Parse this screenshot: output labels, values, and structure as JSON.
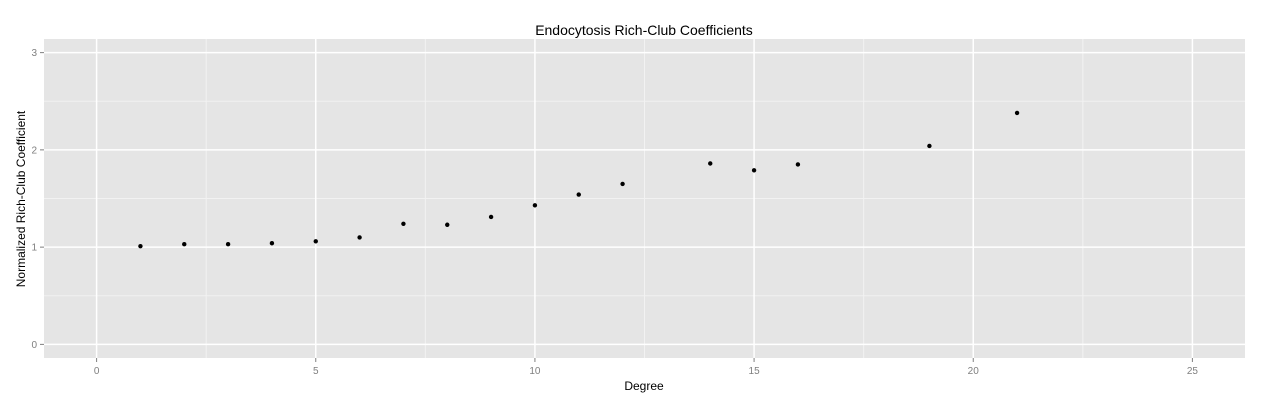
{
  "chart_data": {
    "type": "scatter",
    "title": "Endocytosis Rich-Club Coefficients",
    "xlabel": "Degree",
    "ylabel": "Normalized Rich-Club Coefficient",
    "xlim": [
      -1.2,
      26.2
    ],
    "ylim": [
      -0.14,
      3.14
    ],
    "xticks": [
      0,
      5,
      10,
      15,
      20,
      25
    ],
    "yticks": [
      0,
      1,
      2,
      3
    ],
    "grid": true,
    "panel_color": "#e5e5e5",
    "grid_color": "#ffffff",
    "point_color": "#000000",
    "x": [
      1,
      2,
      3,
      4,
      5,
      6,
      7,
      8,
      9,
      10,
      11,
      12,
      14,
      15,
      16,
      19,
      21
    ],
    "y": [
      1.01,
      1.03,
      1.03,
      1.04,
      1.06,
      1.1,
      1.24,
      1.23,
      1.31,
      1.43,
      1.54,
      1.65,
      1.86,
      1.79,
      1.85,
      2.04,
      2.38
    ]
  }
}
